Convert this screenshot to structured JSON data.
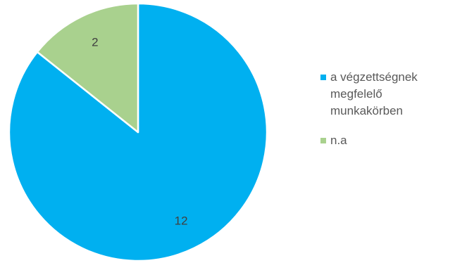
{
  "chart_data": {
    "type": "pie",
    "categories": [
      "a végzettségnek megfelelő munkakörben",
      "n.a"
    ],
    "values": [
      12,
      2
    ],
    "data_labels": [
      "12",
      "2"
    ],
    "colors": [
      "#00b0f0",
      "#a9d18e"
    ],
    "start_angle_deg": 0,
    "direction": "clockwise",
    "legend_position": "right"
  }
}
